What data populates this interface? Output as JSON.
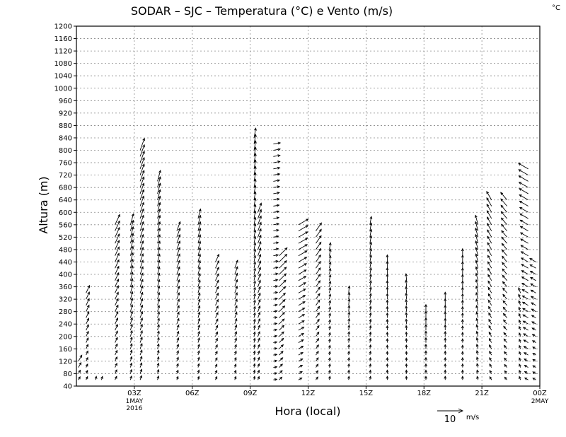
{
  "chart_data": {
    "type": "wind-barb-timeheight",
    "title": "SODAR – SJC – Temperatura (°C) e Vento (m/s)",
    "corner_unit": "°C",
    "xlabel": "Hora (local)",
    "ylabel": "Altura (m)",
    "ylim": [
      40,
      1200
    ],
    "y_ticks": [
      40,
      80,
      120,
      160,
      200,
      240,
      280,
      320,
      360,
      400,
      440,
      480,
      520,
      560,
      600,
      640,
      680,
      720,
      760,
      800,
      840,
      880,
      920,
      960,
      1000,
      1040,
      1080,
      1120,
      1160,
      1200
    ],
    "xlim_hours": [
      0,
      24
    ],
    "x_ticks": [
      {
        "h": 3,
        "label": "03Z",
        "sub1": "1MAY",
        "sub2": "2016"
      },
      {
        "h": 6,
        "label": "06Z"
      },
      {
        "h": 9,
        "label": "09Z"
      },
      {
        "h": 12,
        "label": "12Z"
      },
      {
        "h": 15,
        "label": "15Z"
      },
      {
        "h": 18,
        "label": "18Z"
      },
      {
        "h": 21,
        "label": "21Z"
      },
      {
        "h": 24,
        "label": "00Z",
        "sub1": "2MAY"
      }
    ],
    "reference_vector": {
      "speed": 10,
      "label": "10",
      "unit": "m/s"
    },
    "profiles": [
      {
        "hour": 0.1,
        "top": 120,
        "dir": 30,
        "speed": 5
      },
      {
        "hour": 0.5,
        "top": 350,
        "dir": 25,
        "speed": 6
      },
      {
        "hour": 1.0,
        "top": 60,
        "dir": 10,
        "speed": 3
      },
      {
        "hour": 1.3,
        "top": 60,
        "dir": 15,
        "speed": 3
      },
      {
        "hour": 2.0,
        "top": 560,
        "dir": 25,
        "speed": 8
      },
      {
        "hour": 2.8,
        "top": 560,
        "dir": 15,
        "speed": 8
      },
      {
        "hour": 3.3,
        "top": 800,
        "dir": 20,
        "speed": 9
      },
      {
        "hour": 4.2,
        "top": 700,
        "dir": 15,
        "speed": 8
      },
      {
        "hour": 5.2,
        "top": 540,
        "dir": 20,
        "speed": 7
      },
      {
        "hour": 6.3,
        "top": 580,
        "dir": 15,
        "speed": 7
      },
      {
        "hour": 7.2,
        "top": 440,
        "dir": 25,
        "speed": 6
      },
      {
        "hour": 8.2,
        "top": 420,
        "dir": 20,
        "speed": 6
      },
      {
        "hour": 9.2,
        "top": 840,
        "dir": 10,
        "speed": 7
      },
      {
        "hour": 9.4,
        "top": 600,
        "dir": 20,
        "speed": 7
      },
      {
        "hour": 10.2,
        "top": 820,
        "dir": 80,
        "speed": 5
      },
      {
        "hour": 10.5,
        "top": 460,
        "dir": 45,
        "speed": 8
      },
      {
        "hour": 11.5,
        "top": 560,
        "dir": 60,
        "speed": 8
      },
      {
        "hour": 12.4,
        "top": 540,
        "dir": 35,
        "speed": 7
      },
      {
        "hour": 13.1,
        "top": 490,
        "dir": 10,
        "speed": 5
      },
      {
        "hour": 14.1,
        "top": 340,
        "dir": 5,
        "speed": 5
      },
      {
        "hour": 15.2,
        "top": 570,
        "dir": 10,
        "speed": 6
      },
      {
        "hour": 16.1,
        "top": 440,
        "dir": 0,
        "speed": 5
      },
      {
        "hour": 17.1,
        "top": 390,
        "dir": 355,
        "speed": 5
      },
      {
        "hour": 18.1,
        "top": 280,
        "dir": 0,
        "speed": 5
      },
      {
        "hour": 19.1,
        "top": 320,
        "dir": 0,
        "speed": 5
      },
      {
        "hour": 20.0,
        "top": 460,
        "dir": 0,
        "speed": 5
      },
      {
        "hour": 20.8,
        "top": 560,
        "dir": 345,
        "speed": 7
      },
      {
        "hour": 21.5,
        "top": 650,
        "dir": 330,
        "speed": 7
      },
      {
        "hour": 22.3,
        "top": 650,
        "dir": 320,
        "speed": 7
      },
      {
        "hour": 23.0,
        "top": 350,
        "dir": 340,
        "speed": 4
      },
      {
        "hour": 23.4,
        "top": 740,
        "dir": 300,
        "speed": 8
      },
      {
        "hour": 23.8,
        "top": 440,
        "dir": 300,
        "speed": 5
      }
    ]
  }
}
